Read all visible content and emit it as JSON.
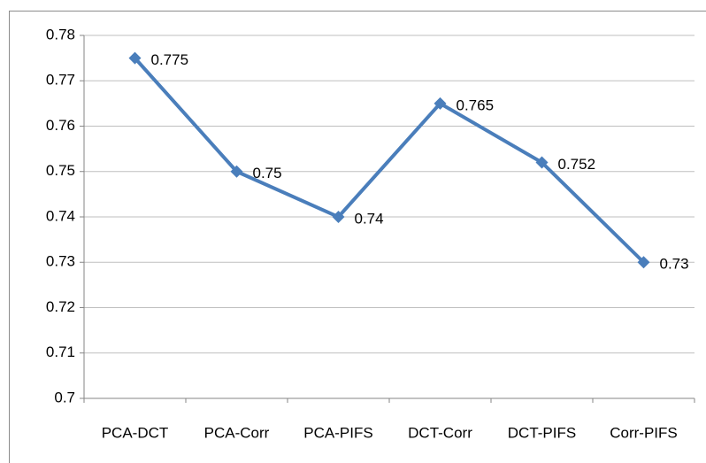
{
  "chart_data": {
    "type": "line",
    "categories": [
      "PCA-DCT",
      "PCA-Corr",
      "PCA-PIFS",
      "DCT-Corr",
      "DCT-PIFS",
      "Corr-PIFS"
    ],
    "values": [
      0.775,
      0.75,
      0.74,
      0.765,
      0.752,
      0.73
    ],
    "color": "#4a7ebb",
    "ylim": [
      0.7,
      0.78
    ],
    "yticks": [
      0.7,
      0.71,
      0.72,
      0.73,
      0.74,
      0.75,
      0.76,
      0.77,
      0.78
    ],
    "grid": true
  }
}
